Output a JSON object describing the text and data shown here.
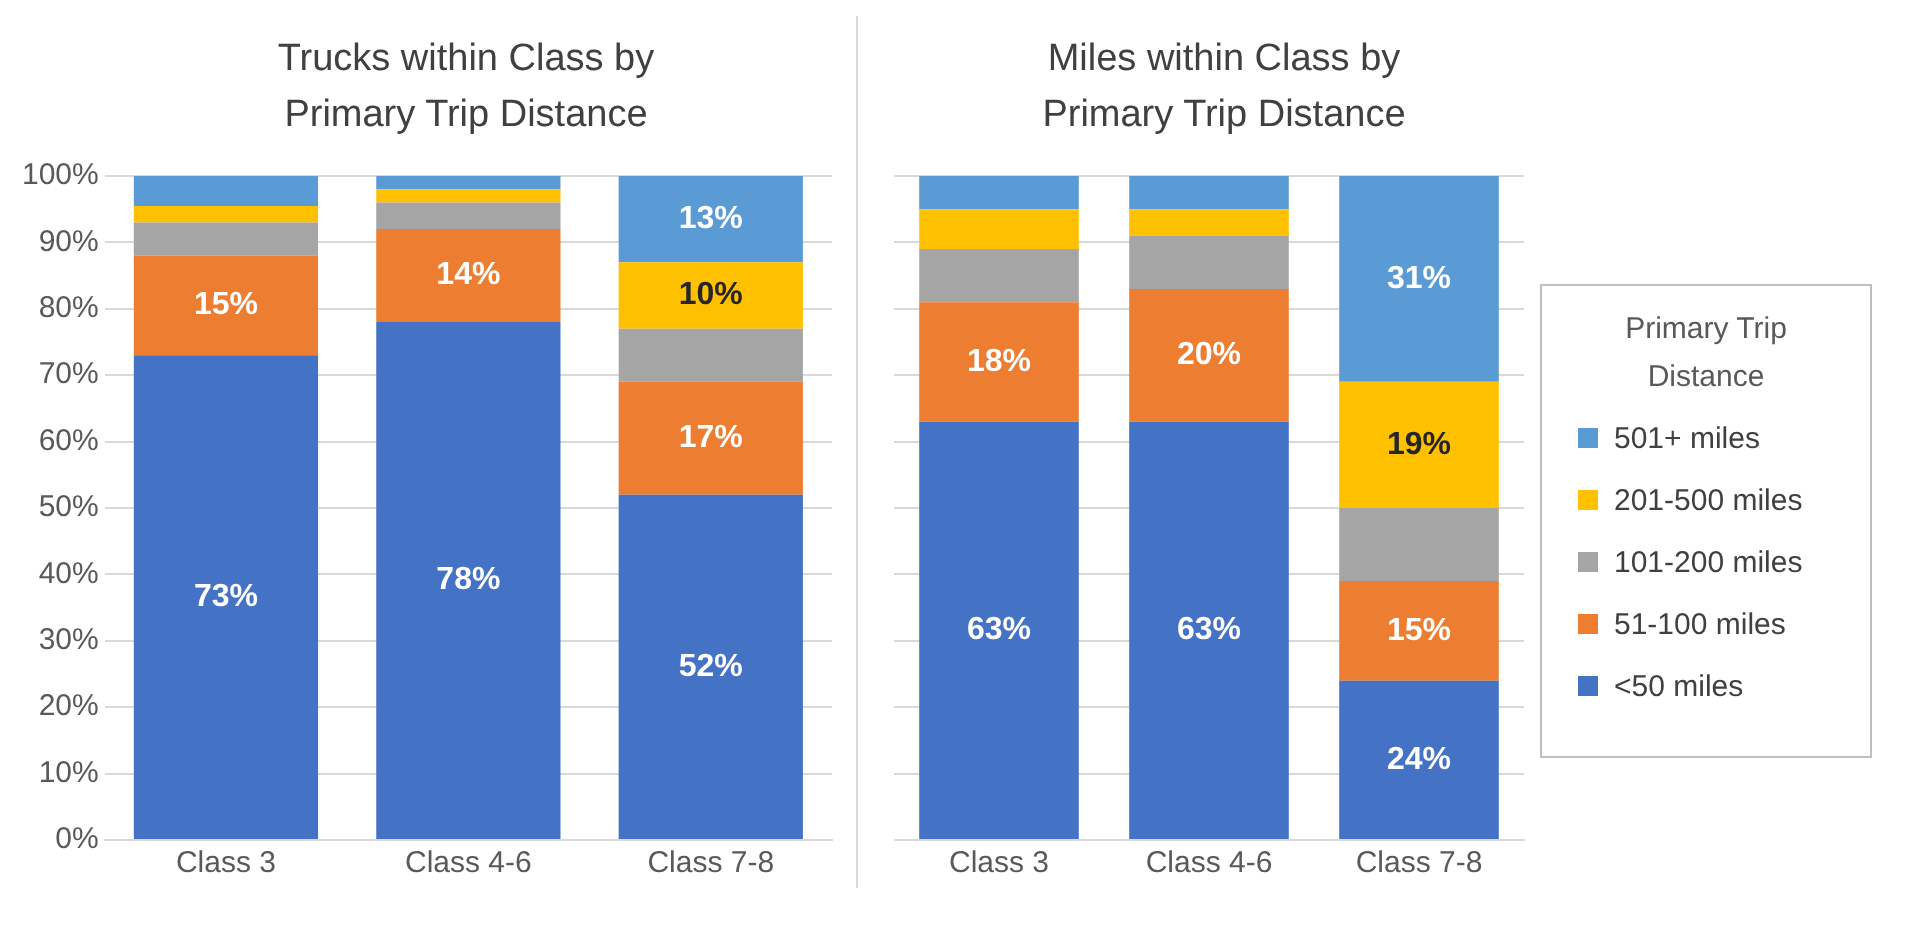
{
  "chart_data": [
    {
      "type": "bar",
      "title": "Trucks within Class by Primary Trip Distance",
      "categories": [
        "Class 3",
        "Class 4-6",
        "Class 7-8"
      ],
      "stacked": true,
      "ylim": [
        0,
        100
      ],
      "yticks": [
        {
          "value": 0,
          "label": "0%"
        },
        {
          "value": 10,
          "label": "10%"
        },
        {
          "value": 20,
          "label": "20%"
        },
        {
          "value": 30,
          "label": "30%"
        },
        {
          "value": 40,
          "label": "40%"
        },
        {
          "value": 50,
          "label": "50%"
        },
        {
          "value": 60,
          "label": "60%"
        },
        {
          "value": 70,
          "label": "70%"
        },
        {
          "value": 80,
          "label": "80%"
        },
        {
          "value": 90,
          "label": "90%"
        },
        {
          "value": 100,
          "label": "100%"
        }
      ],
      "grid": "y",
      "legend": false,
      "series": [
        {
          "color": "#4472c4",
          "values": [
            73,
            78,
            52
          ],
          "value_labels": [
            "73%",
            "78%",
            "52%"
          ]
        },
        {
          "color": "#ed7d31",
          "values": [
            15,
            14,
            17
          ],
          "value_labels": [
            "15%",
            "14%",
            "17%"
          ]
        },
        {
          "color": "#a5a5a5",
          "values": [
            5,
            4,
            8
          ],
          "value_labels": [
            null,
            null,
            null
          ]
        },
        {
          "color": "#ffc000",
          "values": [
            2.5,
            2,
            10
          ],
          "value_labels": [
            null,
            null,
            "10%"
          ]
        },
        {
          "color": "#5b9bd5",
          "values": [
            4.5,
            2,
            13
          ],
          "value_labels": [
            null,
            null,
            "13%"
          ]
        }
      ]
    },
    {
      "type": "bar",
      "title": "Miles within Class by Primary Trip Distance",
      "categories": [
        "Class 3",
        "Class 4-6",
        "Class 7-8"
      ],
      "stacked": true,
      "ylim": [
        0,
        100
      ],
      "yticks": [
        0,
        10,
        20,
        30,
        40,
        50,
        60,
        70,
        80,
        90,
        100
      ],
      "tick_labels": "x",
      "grid": "y",
      "legend": "right",
      "legend_title": "Primary Trip Distance",
      "series": [
        {
          "name": "<50 miles",
          "color": "#4472c4",
          "values": [
            63,
            63,
            24
          ],
          "value_labels": [
            "63%",
            "63%",
            "24%"
          ]
        },
        {
          "name": "51-100 miles",
          "color": "#ed7d31",
          "values": [
            18,
            20,
            15
          ],
          "value_labels": [
            "18%",
            "20%",
            "15%"
          ]
        },
        {
          "name": "101-200 miles",
          "color": "#a5a5a5",
          "values": [
            8,
            8,
            11
          ],
          "value_labels": [
            null,
            null,
            null
          ]
        },
        {
          "name": "201-500 miles",
          "color": "#ffc000",
          "values": [
            6,
            4,
            19
          ],
          "value_labels": [
            null,
            null,
            "19%"
          ]
        },
        {
          "name": "501+ miles",
          "color": "#5b9bd5",
          "values": [
            5,
            5,
            31
          ],
          "value_labels": [
            null,
            null,
            "31%"
          ]
        }
      ]
    }
  ]
}
